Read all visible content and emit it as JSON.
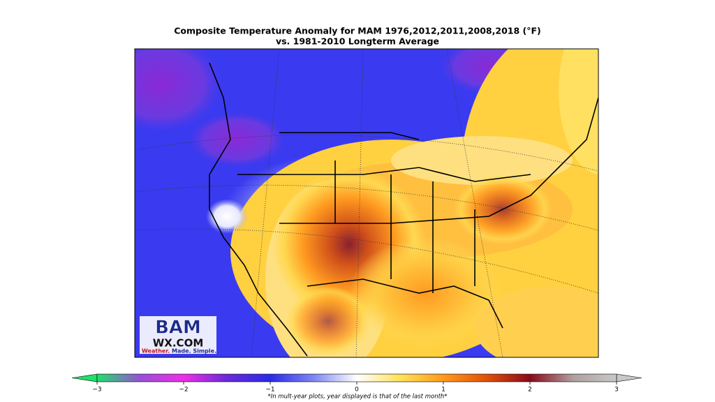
{
  "map": {
    "title": "Composite Temperature Anomaly for MAM 1976,2012,2011,2008,2018 (°F)",
    "subtitle": "vs. 1981-2010 Longterm Average",
    "colorbar": {
      "lim": [
        -3,
        3
      ],
      "ticks": [
        {
          "value": -3,
          "label": "−3"
        },
        {
          "value": -2,
          "label": "−2"
        },
        {
          "value": -1,
          "label": "−1"
        },
        0,
        1,
        2,
        3
      ],
      "colors": [
        "#1fe06a",
        "#9a4fd6",
        "#ee2ee8",
        "#6a2ad6",
        "#2a2ae8",
        "#7e86f2",
        "#ffffff",
        "#ffe25a",
        "#ff9a1a",
        "#e0500a",
        "#8a0a1a",
        "#b0a0a0",
        "#c8c8c8"
      ]
    },
    "footnote": "*In mult-year plots, year displayed is that of the last month*"
  },
  "logo": {
    "mark": "BAM",
    "site": "WX.COM",
    "tagline_1": "Weather.",
    "tagline_2": "Made. Simple."
  }
}
